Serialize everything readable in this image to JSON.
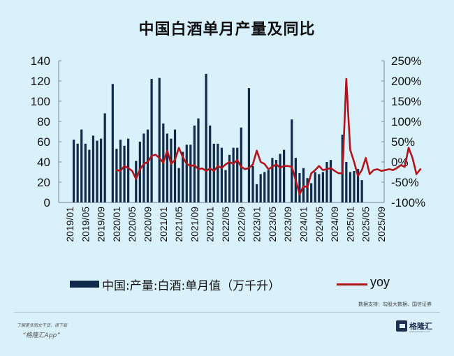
{
  "title": "中国白酒单月产量及同比",
  "legend": {
    "bar_label": "中国:产量:白酒:单月值（万千升）",
    "line_label": "yoy"
  },
  "source": "数据支持：勾股大数据、国信证券",
  "footer": {
    "promo_line1": "了解更多图文干货，请下载",
    "promo_line2": "“格隆汇App”",
    "logo_text": "格隆汇",
    "logo_sub": "www.gelonghui.com"
  },
  "colors": {
    "bar": "#0f2a4a",
    "line": "#b3141c",
    "axis": "#8a9aa6",
    "background": "#d9f1fb"
  },
  "chart_data": {
    "type": "bar+line",
    "title": "中国白酒单月产量及同比",
    "x_tick_labels": [
      "2019/01",
      "2019/05",
      "2019/09",
      "2020/01",
      "2020/05",
      "2020/09",
      "2021/01",
      "2021/05",
      "2021/09",
      "2022/01",
      "2022/05",
      "2022/09",
      "2023/01",
      "2023/05",
      "2023/09",
      "2024/01",
      "2024/05",
      "2024/09",
      "2025/01",
      "2025/05",
      "2025/09"
    ],
    "left_axis": {
      "label": "万千升",
      "range": [
        0,
        140
      ],
      "ticks": [
        0,
        20,
        40,
        60,
        80,
        100,
        120,
        140
      ]
    },
    "right_axis": {
      "label": "yoy",
      "range": [
        -100,
        250
      ],
      "ticks": [
        "-100%",
        "-50%",
        "0%",
        "50%",
        "100%",
        "150%",
        "200%",
        "250%"
      ]
    },
    "legend_position": "bottom",
    "grid": false,
    "series": [
      {
        "name": "中国:产量:白酒:单月值（万千升）",
        "type": "bar",
        "axis": "left",
        "start": "2019/01",
        "values": [
          null,
          62,
          58,
          72,
          58,
          52,
          66,
          61,
          63,
          88,
          null,
          117,
          53,
          62,
          56,
          63,
          null,
          41,
          60,
          68,
          72,
          122,
          null,
          123,
          78,
          68,
          63,
          72,
          34,
          50,
          57,
          57,
          76,
          83,
          null,
          127,
          76,
          58,
          58,
          54,
          32,
          47,
          54,
          54,
          74,
          null,
          113,
          36,
          18,
          28,
          30,
          32,
          44,
          42,
          48,
          52,
          null,
          82,
          44,
          29,
          34,
          24,
          19,
          30,
          28,
          30,
          40,
          42,
          null,
          null,
          67,
          40,
          30,
          31,
          33,
          22,
          null,
          null,
          null,
          null,
          null
        ],
        "values_clean": [
          62,
          58,
          72,
          58,
          52,
          66,
          61,
          63,
          88,
          117,
          53,
          62,
          56,
          63,
          41,
          60,
          68,
          72,
          122,
          123,
          78,
          68,
          63,
          56,
          68,
          22,
          40,
          57,
          57,
          74,
          83,
          127,
          76,
          58,
          58,
          54,
          32,
          47,
          54,
          54,
          74,
          113,
          36,
          18,
          26,
          30,
          32,
          44,
          42,
          48,
          52,
          82,
          44,
          29,
          34,
          24,
          19,
          30,
          28,
          30,
          40,
          42,
          67,
          40,
          28,
          31,
          33,
          22,
          20,
          30
        ]
      },
      {
        "name": "yoy",
        "type": "line",
        "axis": "right",
        "note": "Percent YoY from 2020/01 onward",
        "values_pct": [
          -20,
          -22,
          -10,
          -15,
          -22,
          -42,
          -18,
          -5,
          0,
          15,
          18,
          10,
          -2,
          28,
          -5,
          5,
          35,
          12,
          -5,
          -10,
          -8,
          -18,
          -16,
          -22,
          -16,
          -22,
          -10,
          -15,
          -6,
          0,
          -5,
          5,
          -12,
          -18,
          -15,
          -6,
          28,
          0,
          -5,
          -18,
          -12,
          -6,
          -14,
          -10,
          -10,
          -12,
          -45,
          -80,
          -60,
          -62,
          -28,
          -20,
          -10,
          -20,
          -18,
          -15,
          -22,
          -28,
          -28,
          205,
          30,
          0,
          -35,
          -20,
          10,
          -30,
          -20,
          -18,
          -22,
          -20,
          -18,
          -20,
          -15,
          -8,
          -12,
          35,
          10,
          -30,
          -18
        ]
      }
    ]
  }
}
